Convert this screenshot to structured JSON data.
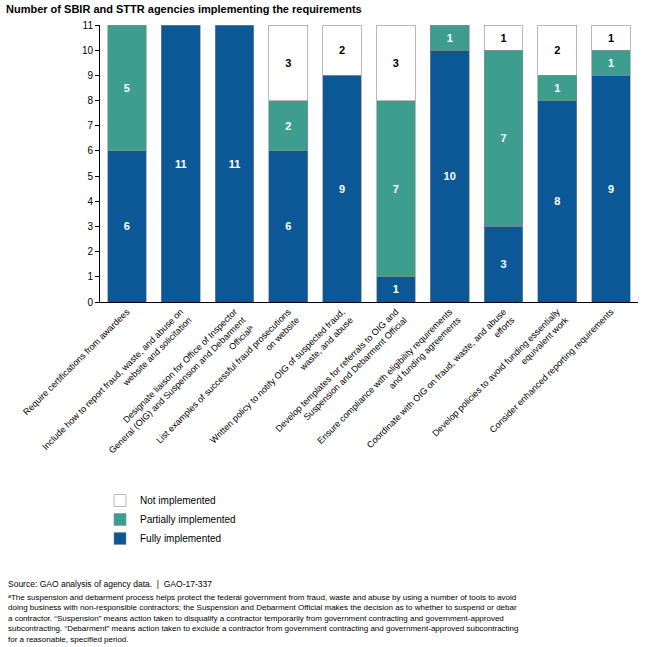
{
  "chart_data": {
    "type": "bar",
    "stacked": true,
    "title": "Number of SBIR and STTR agencies implementing the requirements",
    "categories": [
      "Require certifications from awardees",
      "Include how to report fraud, waste, and abuse on website and solicitation",
      "Designate liaison for Office of Inspector General (OIG) and Suspension and Debarment Officialᵃ",
      "List examples of successful fraud prosecutions on website",
      "Written policy to notify OIG of suspected fraud, waste, and abuse",
      "Develop templates for referrals to OIG and Suspension and Debarment Official",
      "Ensure compliance with eligibility requirements and funding agreements",
      "Coordinate with OIG on fraud, waste, and abuse efforts",
      "Develop policies to avoid funding essentially equivalent work",
      "Consider enhanced reporting requirements"
    ],
    "series": [
      {
        "name": "Fully implemented",
        "color": "#0c5897",
        "values": [
          6,
          11,
          11,
          6,
          9,
          1,
          10,
          3,
          8,
          9
        ]
      },
      {
        "name": "Partially implemented",
        "color": "#3d9e8f",
        "values": [
          5,
          null,
          null,
          2,
          null,
          7,
          1,
          7,
          1,
          1
        ]
      },
      {
        "name": "Not implemented",
        "color": "#ffffff",
        "values": [
          null,
          null,
          null,
          3,
          2,
          3,
          null,
          1,
          2,
          1
        ]
      }
    ],
    "ylim": [
      0,
      11
    ],
    "yticks": [
      0,
      1,
      2,
      3,
      4,
      5,
      6,
      7,
      8,
      9,
      10,
      11
    ],
    "grid": false,
    "data_labels": true,
    "source": "Source: GAO analysis of agency data.  |  GAO-17-337",
    "footnote": "ᵃThe suspension and debarment process helps protect the federal government from fraud, waste and abuse by using a number of tools to avoid doing business with non-responsible contractors; the Suspension and Debarment Official makes the decision as to whether to suspend or debar a contractor. “Suspension” means action taken to disqualify a contractor temporarily from government contracting and government-approved subcontracting. “Debarment” means action taken to exclude a contractor from government contracting and government-approved subcontracting for a reasonable, specified period."
  }
}
